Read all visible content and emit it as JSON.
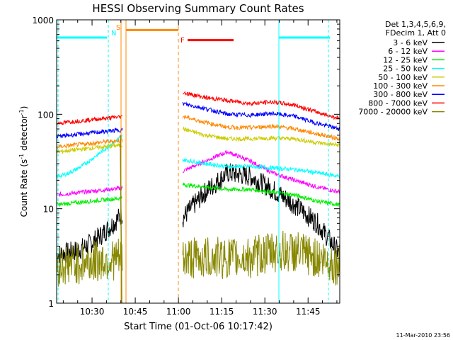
{
  "chart_data": {
    "type": "line",
    "title": "HESSI Observing Summary Count Rates",
    "xlabel": "Start Time (01-Oct-06 10:17:42)",
    "ylabel_main": "Count Rate (s",
    "ylabel_sup1": "-1",
    "ylabel_mid": " detector",
    "ylabel_sup2": "-1",
    "ylabel_end": ")",
    "yscale": "log",
    "ylim": [
      1,
      1000
    ],
    "xlim_minutes": [
      "10:17:42",
      "11:56:00"
    ],
    "x_ticks": [
      {
        "label": "10:30",
        "t": 630
      },
      {
        "label": "10:45",
        "t": 645
      },
      {
        "label": "11:00",
        "t": 660
      },
      {
        "label": "11:15",
        "t": 675
      },
      {
        "label": "11:30",
        "t": 690
      },
      {
        "label": "11:45",
        "t": 705
      }
    ],
    "y_ticks": [
      {
        "label": "1",
        "v": 1
      },
      {
        "label": "10",
        "v": 10
      },
      {
        "label": "100",
        "v": 100
      },
      {
        "label": "1000",
        "v": 1000
      }
    ],
    "legend_header": [
      "Det 1,3,4,5,6,9,",
      "FDecim 1, Att 0"
    ],
    "legend_placement": "right",
    "series": [
      {
        "name": "3 - 6 keV",
        "color": "#000000",
        "pre": 3.3,
        "post": [
          8,
          15,
          24,
          22,
          16,
          11,
          7,
          3.3
        ]
      },
      {
        "name": "6 - 12 keV",
        "color": "#ff00ff",
        "pre": 14,
        "post": [
          25,
          32,
          40,
          32,
          24,
          20,
          17,
          15
        ]
      },
      {
        "name": "12 - 25 keV",
        "color": "#00ee00",
        "pre": 11,
        "post": [
          18,
          17,
          16,
          16,
          15,
          14,
          12,
          11
        ]
      },
      {
        "name": "25 - 50 keV",
        "color": "#00ffff",
        "pre": 22,
        "post": [
          33,
          30,
          28,
          28,
          27,
          26,
          24,
          22
        ]
      },
      {
        "name": "50 - 100 keV",
        "color": "#cccc00",
        "pre": 40,
        "post": [
          70,
          60,
          55,
          55,
          56,
          55,
          50,
          47
        ]
      },
      {
        "name": "100 - 300 keV",
        "color": "#ff8800",
        "pre": 45,
        "post": [
          95,
          82,
          73,
          72,
          75,
          70,
          62,
          55
        ]
      },
      {
        "name": "300 - 800 keV",
        "color": "#0000ff",
        "pre": 58,
        "post": [
          130,
          115,
          100,
          98,
          102,
          95,
          80,
          70
        ]
      },
      {
        "name": "800 - 7000 keV",
        "color": "#ff0000",
        "pre": 80,
        "post": [
          170,
          150,
          140,
          130,
          135,
          125,
          105,
          90
        ]
      },
      {
        "name": "7000 - 20000 keV",
        "color": "#888800",
        "pre": 2.5,
        "post": [
          3,
          3,
          3,
          3,
          3.5,
          3.5,
          3,
          2.5
        ]
      }
    ],
    "flags": [
      {
        "label": "N",
        "color": "#00ffff"
      },
      {
        "label": "S",
        "color": "#ff8800"
      },
      {
        "label": "F",
        "color": "#ff0000"
      }
    ],
    "saa_level": 650,
    "attenuator_level": 780,
    "flare_level": 700
  },
  "footer_date": "11-Mar-2010 23:56"
}
